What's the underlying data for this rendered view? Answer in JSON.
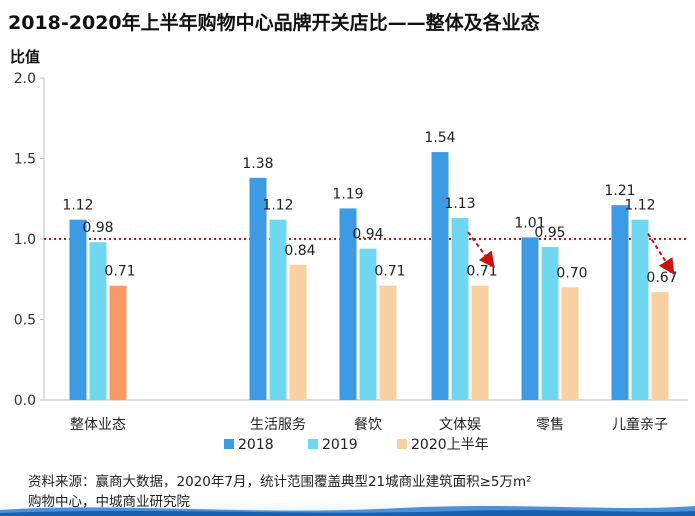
{
  "title": "2018-2020年上半年购物中心品牌开关店比——整体及各业态",
  "chart_data": {
    "type": "bar",
    "ylabel": "比值",
    "xlabel": "",
    "ylim": [
      0.0,
      2.0
    ],
    "yticks": [
      "0.0",
      "0.5",
      "1.0",
      "1.5",
      "2.0"
    ],
    "categories": [
      "整体业态",
      "生活服务",
      "餐饮",
      "文体娱",
      "零售",
      "儿童亲子"
    ],
    "series": [
      {
        "name": "2018",
        "color": "#3d9be6",
        "values": [
          1.12,
          1.38,
          1.19,
          1.54,
          1.01,
          1.21
        ]
      },
      {
        "name": "2019",
        "color": "#6fd8f0",
        "values": [
          0.98,
          1.12,
          0.94,
          1.13,
          0.95,
          1.12
        ]
      },
      {
        "name": "2020上半年",
        "color": "#f9d1a0",
        "values": [
          0.71,
          0.84,
          0.71,
          0.71,
          0.7,
          0.67
        ]
      }
    ],
    "first_group_2020_color": "#f79a66",
    "reference_line": {
      "value": 1.0,
      "color": "#cc1111",
      "style": "dotted"
    },
    "annotations": [
      {
        "type": "arrow",
        "category": "文体娱",
        "from_series": "2019",
        "to_series": "2020上半年",
        "color": "#cc1111"
      },
      {
        "type": "arrow",
        "category": "儿童亲子",
        "from_series": "2019",
        "to_series": "2020上半年",
        "color": "#cc1111"
      }
    ],
    "grid": false,
    "legend_position": "bottom"
  },
  "footer": {
    "line1": "资料来源：赢商大数据，2020年7月，统计范围覆盖典型21城商业建筑面积≥5万m²",
    "line2": "购物中心，中城商业研究院"
  }
}
